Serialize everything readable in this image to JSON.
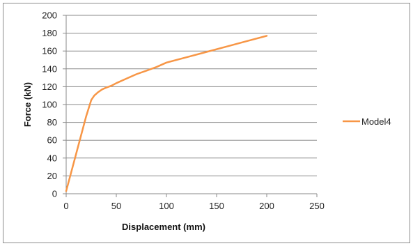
{
  "chart_data": {
    "type": "line",
    "title": "",
    "xlabel": "Displacement (mm)",
    "ylabel": "Force (kN)",
    "xlim": [
      0,
      250
    ],
    "ylim": [
      0,
      200
    ],
    "x_ticks": [
      0,
      50,
      100,
      150,
      200,
      250
    ],
    "y_ticks": [
      0,
      20,
      40,
      60,
      80,
      100,
      120,
      140,
      160,
      180,
      200
    ],
    "grid": "horizontal",
    "legend_position": "right",
    "series": [
      {
        "name": "Model4",
        "color": "#F79646",
        "x": [
          0,
          5,
          10,
          15,
          20,
          25,
          28,
          32,
          36,
          40,
          45,
          50,
          60,
          70,
          80,
          90,
          100,
          120,
          140,
          160,
          180,
          200
        ],
        "y": [
          3,
          24,
          45,
          66,
          87,
          105,
          110,
          114,
          117,
          119,
          121,
          124,
          129,
          134,
          138,
          142,
          147,
          153,
          159,
          165,
          171,
          177
        ]
      }
    ]
  }
}
